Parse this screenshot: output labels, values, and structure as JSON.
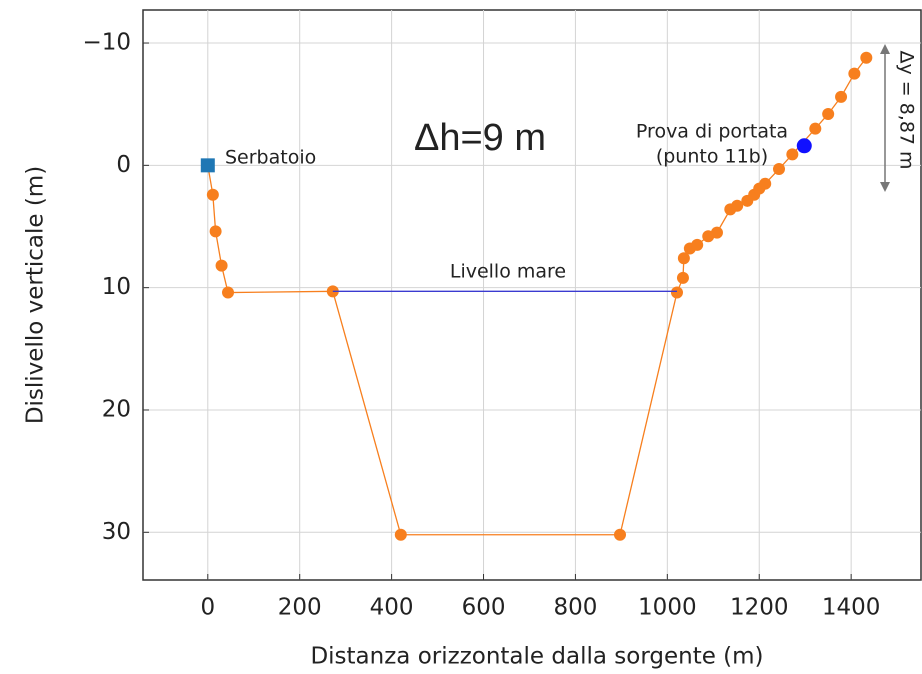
{
  "chart_data": {
    "type": "line",
    "xlabel": "Distanza orizzontale dalla sorgente (m)",
    "ylabel": "Dislivello verticale (m)",
    "xlim": [
      -141,
      1552
    ],
    "ylim": [
      -12.7,
      33.9
    ],
    "y_inverted": true,
    "grid": true,
    "xticks": [
      0,
      200,
      400,
      600,
      800,
      1000,
      1200,
      1400
    ],
    "yticks": [
      {
        "value": -10,
        "label": "−10"
      },
      0,
      10,
      20,
      30
    ],
    "series": [
      {
        "color": "#f77f1e",
        "marker": "circle",
        "x": [
          0,
          11,
          17,
          30,
          44,
          272,
          420,
          897,
          1021,
          1034,
          1036,
          1049,
          1065,
          1089,
          1108,
          1137,
          1152,
          1174,
          1189,
          1200,
          1213,
          1243,
          1272,
          1322,
          1350,
          1378,
          1407,
          1433
        ],
        "values": [
          0,
          2.4,
          5.4,
          8.2,
          10.4,
          10.3,
          30.2,
          30.2,
          10.4,
          9.2,
          7.6,
          6.8,
          6.5,
          5.8,
          5.5,
          3.6,
          3.3,
          2.9,
          2.4,
          1.9,
          1.5,
          0.3,
          -0.9,
          -3.0,
          -4.2,
          -5.6,
          -7.5,
          -8.8
        ]
      },
      {
        "color": "#3b3bd0",
        "marker": "none",
        "x": [
          272,
          1021
        ],
        "values": [
          10.3,
          10.3
        ]
      },
      {
        "color": "#1f77b4",
        "marker": "square",
        "x": [
          0
        ],
        "values": [
          0
        ]
      },
      {
        "color": "#1010ff",
        "marker": "circle",
        "x": [
          1298
        ],
        "values": [
          -1.6
        ]
      }
    ],
    "annotations": {
      "reservoir": "Serbatoio",
      "sea_level": "Livello mare",
      "test": [
        "Prova di portata",
        "(punto 11b)"
      ],
      "delta_h": "Δh=9 m",
      "delta_y": "Δy = 8,87 m"
    }
  }
}
